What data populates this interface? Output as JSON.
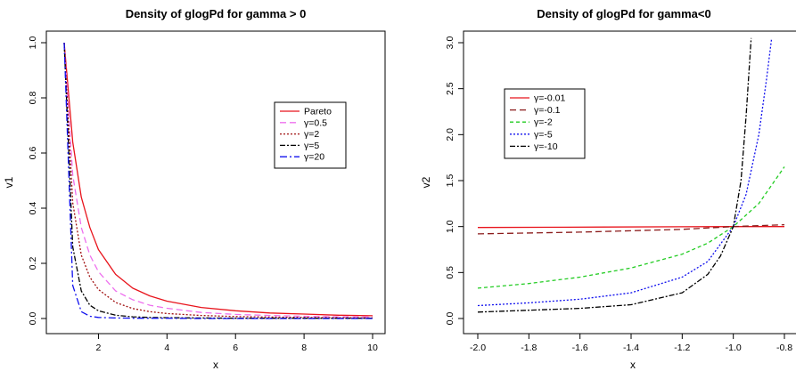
{
  "chart_data": [
    {
      "type": "line",
      "title": "Density of glogPd for gamma > 0",
      "xlabel": "x",
      "ylabel": "v1",
      "xlim": [
        1,
        10
      ],
      "ylim": [
        0,
        1
      ],
      "xticks": [
        2,
        4,
        6,
        8,
        10
      ],
      "yticks": [
        0.0,
        0.2,
        0.4,
        0.6,
        0.8,
        1.0
      ],
      "xtick_labels": [
        "2",
        "4",
        "6",
        "8",
        "10"
      ],
      "ytick_labels": [
        "0.0",
        "0.2",
        "0.4",
        "0.6",
        "0.8",
        "1.0"
      ],
      "legend_position": "right",
      "x": [
        1,
        1.25,
        1.5,
        1.75,
        2,
        2.5,
        3,
        3.5,
        4,
        5,
        6,
        7,
        8,
        9,
        10
      ],
      "series": [
        {
          "name": "Pareto",
          "color": "#e8141c",
          "dash": "",
          "values": [
            1.0,
            0.64,
            0.44,
            0.33,
            0.25,
            0.16,
            0.11,
            0.082,
            0.063,
            0.04,
            0.028,
            0.02,
            0.016,
            0.012,
            0.01
          ]
        },
        {
          "name": "γ=0.5",
          "color": "#ee70ee",
          "dash": "7,4",
          "values": [
            1.0,
            0.52,
            0.33,
            0.23,
            0.17,
            0.1,
            0.068,
            0.048,
            0.037,
            0.022,
            0.015,
            0.011,
            0.008,
            0.006,
            0.005
          ]
        },
        {
          "name": "γ=2",
          "color": "#a01010",
          "dash": "2,2",
          "values": [
            1.0,
            0.42,
            0.23,
            0.15,
            0.105,
            0.058,
            0.036,
            0.025,
            0.018,
            0.011,
            0.007,
            0.005,
            0.004,
            0.003,
            0.002
          ]
        },
        {
          "name": "γ=5",
          "color": "#000000",
          "dash": "6,2,2,2",
          "values": [
            1.0,
            0.26,
            0.1,
            0.048,
            0.028,
            0.012,
            0.006,
            0.004,
            0.003,
            0.002,
            0.001,
            0.001,
            0.001,
            0.001,
            0.001
          ]
        },
        {
          "name": "γ=20",
          "color": "#1010ee",
          "dash": "8,3,2,3",
          "values": [
            1.0,
            0.12,
            0.025,
            0.008,
            0.004,
            0.002,
            0.001,
            0.001,
            0.001,
            0.0,
            0.0,
            0.0,
            0.0,
            0.0,
            0.0
          ]
        }
      ]
    },
    {
      "type": "line",
      "title": "Density of glogPd for gamma<0",
      "xlabel": "x",
      "ylabel": "v2",
      "xlim": [
        -2.0,
        -0.8
      ],
      "ylim": [
        0,
        3.0
      ],
      "xticks": [
        -2.0,
        -1.8,
        -1.6,
        -1.4,
        -1.2,
        -1.0,
        -0.8
      ],
      "yticks": [
        0.0,
        0.5,
        1.0,
        1.5,
        2.0,
        2.5,
        3.0
      ],
      "xtick_labels": [
        "-2.0",
        "-1.8",
        "-1.6",
        "-1.4",
        "-1.2",
        "-1.0",
        "-0.8"
      ],
      "ytick_labels": [
        "0.0",
        "0.5",
        "1.0",
        "1.5",
        "2.0",
        "2.5",
        "3.0"
      ],
      "legend_position": "top-left",
      "series": [
        {
          "name": "γ=-0.01",
          "color": "#e8141c",
          "dash": "",
          "x": [
            -2.0,
            -1.5,
            -1.0,
            -0.8
          ],
          "values": [
            0.99,
            0.995,
            1.0,
            1.0
          ]
        },
        {
          "name": "γ=-0.1",
          "color": "#8b1a1a",
          "dash": "7,4",
          "x": [
            -2.0,
            -1.6,
            -1.2,
            -1.0,
            -0.8
          ],
          "values": [
            0.92,
            0.94,
            0.97,
            1.0,
            1.02
          ]
        },
        {
          "name": "γ=-2",
          "color": "#22cc22",
          "dash": "4,3",
          "x": [
            -2.0,
            -1.8,
            -1.6,
            -1.4,
            -1.2,
            -1.1,
            -1.0,
            -0.9,
            -0.8
          ],
          "values": [
            0.33,
            0.38,
            0.45,
            0.55,
            0.7,
            0.82,
            1.0,
            1.25,
            1.65
          ]
        },
        {
          "name": "γ=-5",
          "color": "#1010ee",
          "dash": "2,2",
          "x": [
            -2.0,
            -1.8,
            -1.6,
            -1.4,
            -1.2,
            -1.1,
            -1.0,
            -0.95,
            -0.9,
            -0.87,
            -0.85
          ],
          "values": [
            0.14,
            0.17,
            0.21,
            0.28,
            0.45,
            0.62,
            1.0,
            1.35,
            2.0,
            2.6,
            3.05
          ]
        },
        {
          "name": "γ=-10",
          "color": "#000000",
          "dash": "6,2,2,2",
          "x": [
            -2.0,
            -1.8,
            -1.6,
            -1.4,
            -1.2,
            -1.1,
            -1.05,
            -1.0,
            -0.97,
            -0.95,
            -0.93
          ],
          "values": [
            0.07,
            0.09,
            0.11,
            0.15,
            0.28,
            0.48,
            0.68,
            1.0,
            1.5,
            2.2,
            3.05
          ]
        }
      ]
    }
  ]
}
